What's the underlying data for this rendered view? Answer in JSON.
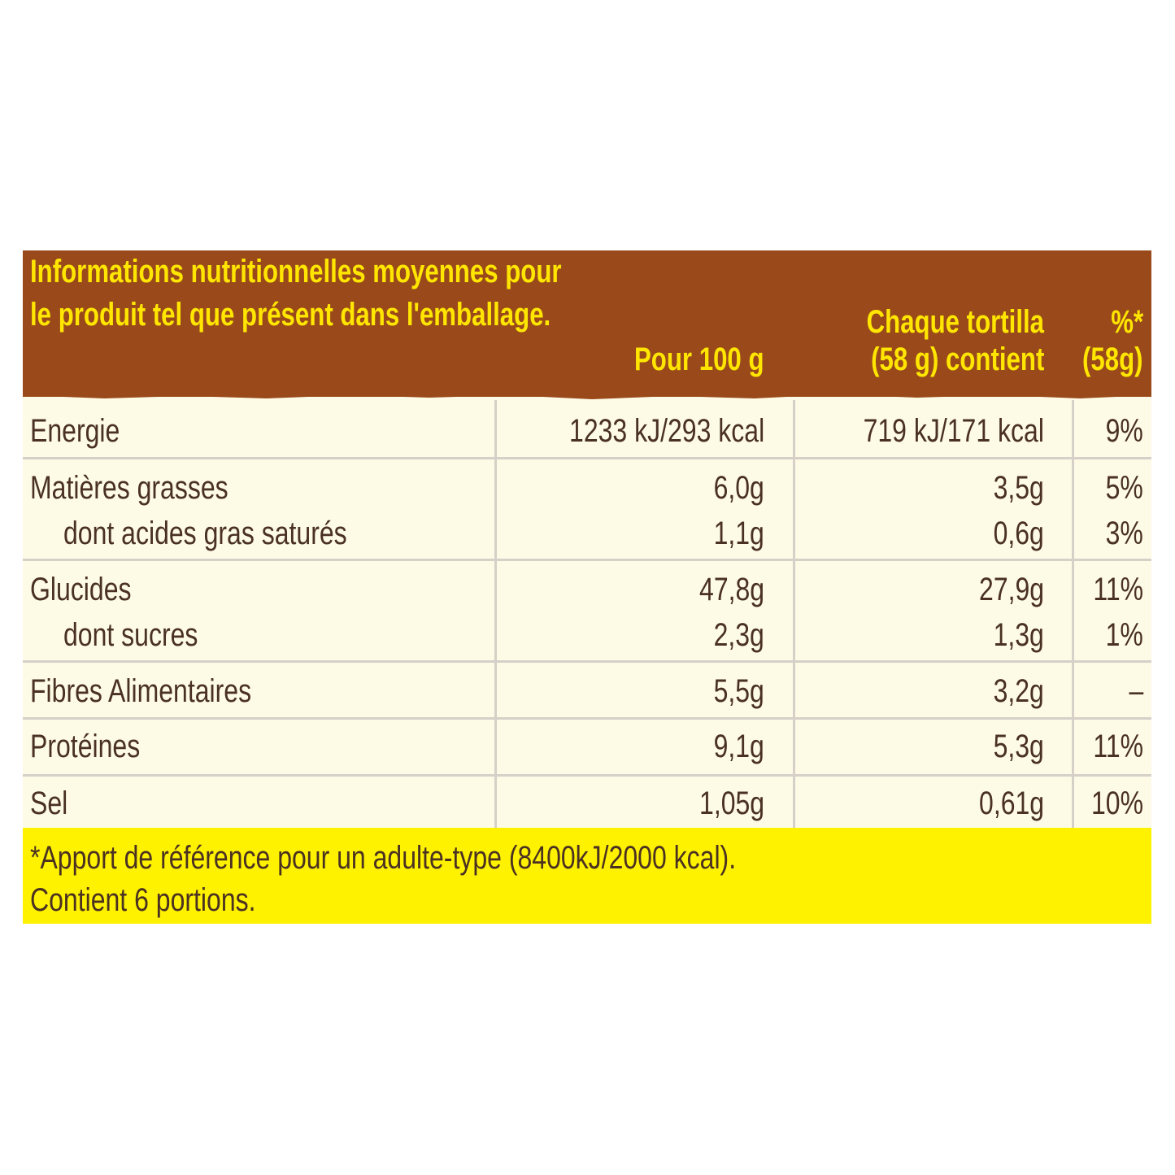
{
  "header": {
    "title_line1": "Informations nutritionnelles moyennes pour",
    "title_line2": "le produit tel que présent dans l'emballage.",
    "col_per100": "Pour 100 g",
    "col_portion_line1": "Chaque tortilla",
    "col_portion_line2": "(58 g) contient",
    "col_ri_line1": "%*",
    "col_ri_line2": "(58g)"
  },
  "rows": [
    {
      "label": "Energie",
      "per100": "1233 kJ/293 kcal",
      "portion": "719 kJ/171 kcal",
      "ri": "9%"
    },
    {
      "label": "Matières grasses",
      "per100": "6,0g",
      "portion": "3,5g",
      "ri": "5%"
    },
    {
      "label": "dont acides gras saturés",
      "per100": "1,1g",
      "portion": "0,6g",
      "ri": "3%"
    },
    {
      "label": "Glucides",
      "per100": "47,8g",
      "portion": "27,9g",
      "ri": "11%"
    },
    {
      "label": "dont sucres",
      "per100": "2,3g",
      "portion": "1,3g",
      "ri": "1%"
    },
    {
      "label": "Fibres Alimentaires",
      "per100": "5,5g",
      "portion": "3,2g",
      "ri": "–"
    },
    {
      "label": "Protéines",
      "per100": "9,1g",
      "portion": "5,3g",
      "ri": "11%"
    },
    {
      "label": "Sel",
      "per100": "1,05g",
      "portion": "0,61g",
      "ri": "10%"
    }
  ],
  "footer": {
    "line1": "*Apport de référence pour un adulte-type (8400kJ/2000 kcal).",
    "line2": "Contient 6 portions."
  },
  "colors": {
    "header_bg": "#9a4a1a",
    "header_text": "#ffe600",
    "body_bg": "#fdfbe6",
    "footer_bg": "#fff200",
    "text": "#4a3122"
  }
}
